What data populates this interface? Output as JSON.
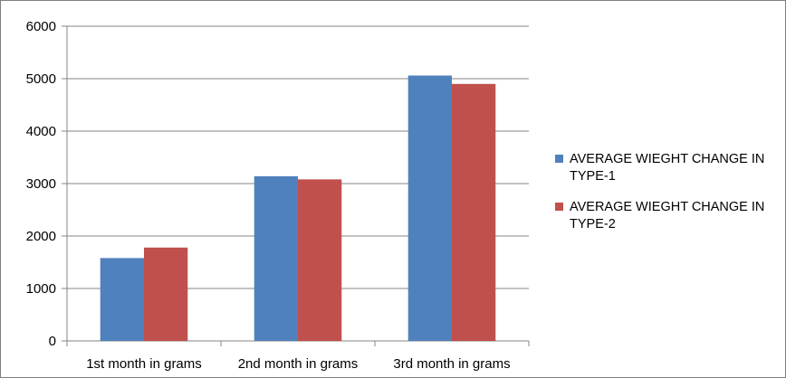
{
  "chart_data": {
    "type": "bar",
    "categories": [
      "1st month in grams",
      "2nd month in grams",
      "3rd month in grams"
    ],
    "series": [
      {
        "name": "AVERAGE WIEGHT CHANGE IN TYPE-1",
        "color": "#4F81BD",
        "values": [
          1580,
          3140,
          5060
        ]
      },
      {
        "name": "AVERAGE WIEGHT CHANGE IN TYPE-2",
        "color": "#C0504D",
        "values": [
          1780,
          3080,
          4900
        ]
      }
    ],
    "title": "",
    "xlabel": "",
    "ylabel": "",
    "ylim": [
      0,
      6000
    ],
    "yticks": [
      "0",
      "1000",
      "2000",
      "3000",
      "4000",
      "5000",
      "6000"
    ],
    "grid": true,
    "legend_position": "right",
    "legend": [
      {
        "lines": [
          "AVERAGE WIEGHT CHANGE IN",
          "TYPE-1"
        ]
      },
      {
        "lines": [
          "AVERAGE WIEGHT CHANGE IN",
          "TYPE-2"
        ]
      }
    ]
  }
}
